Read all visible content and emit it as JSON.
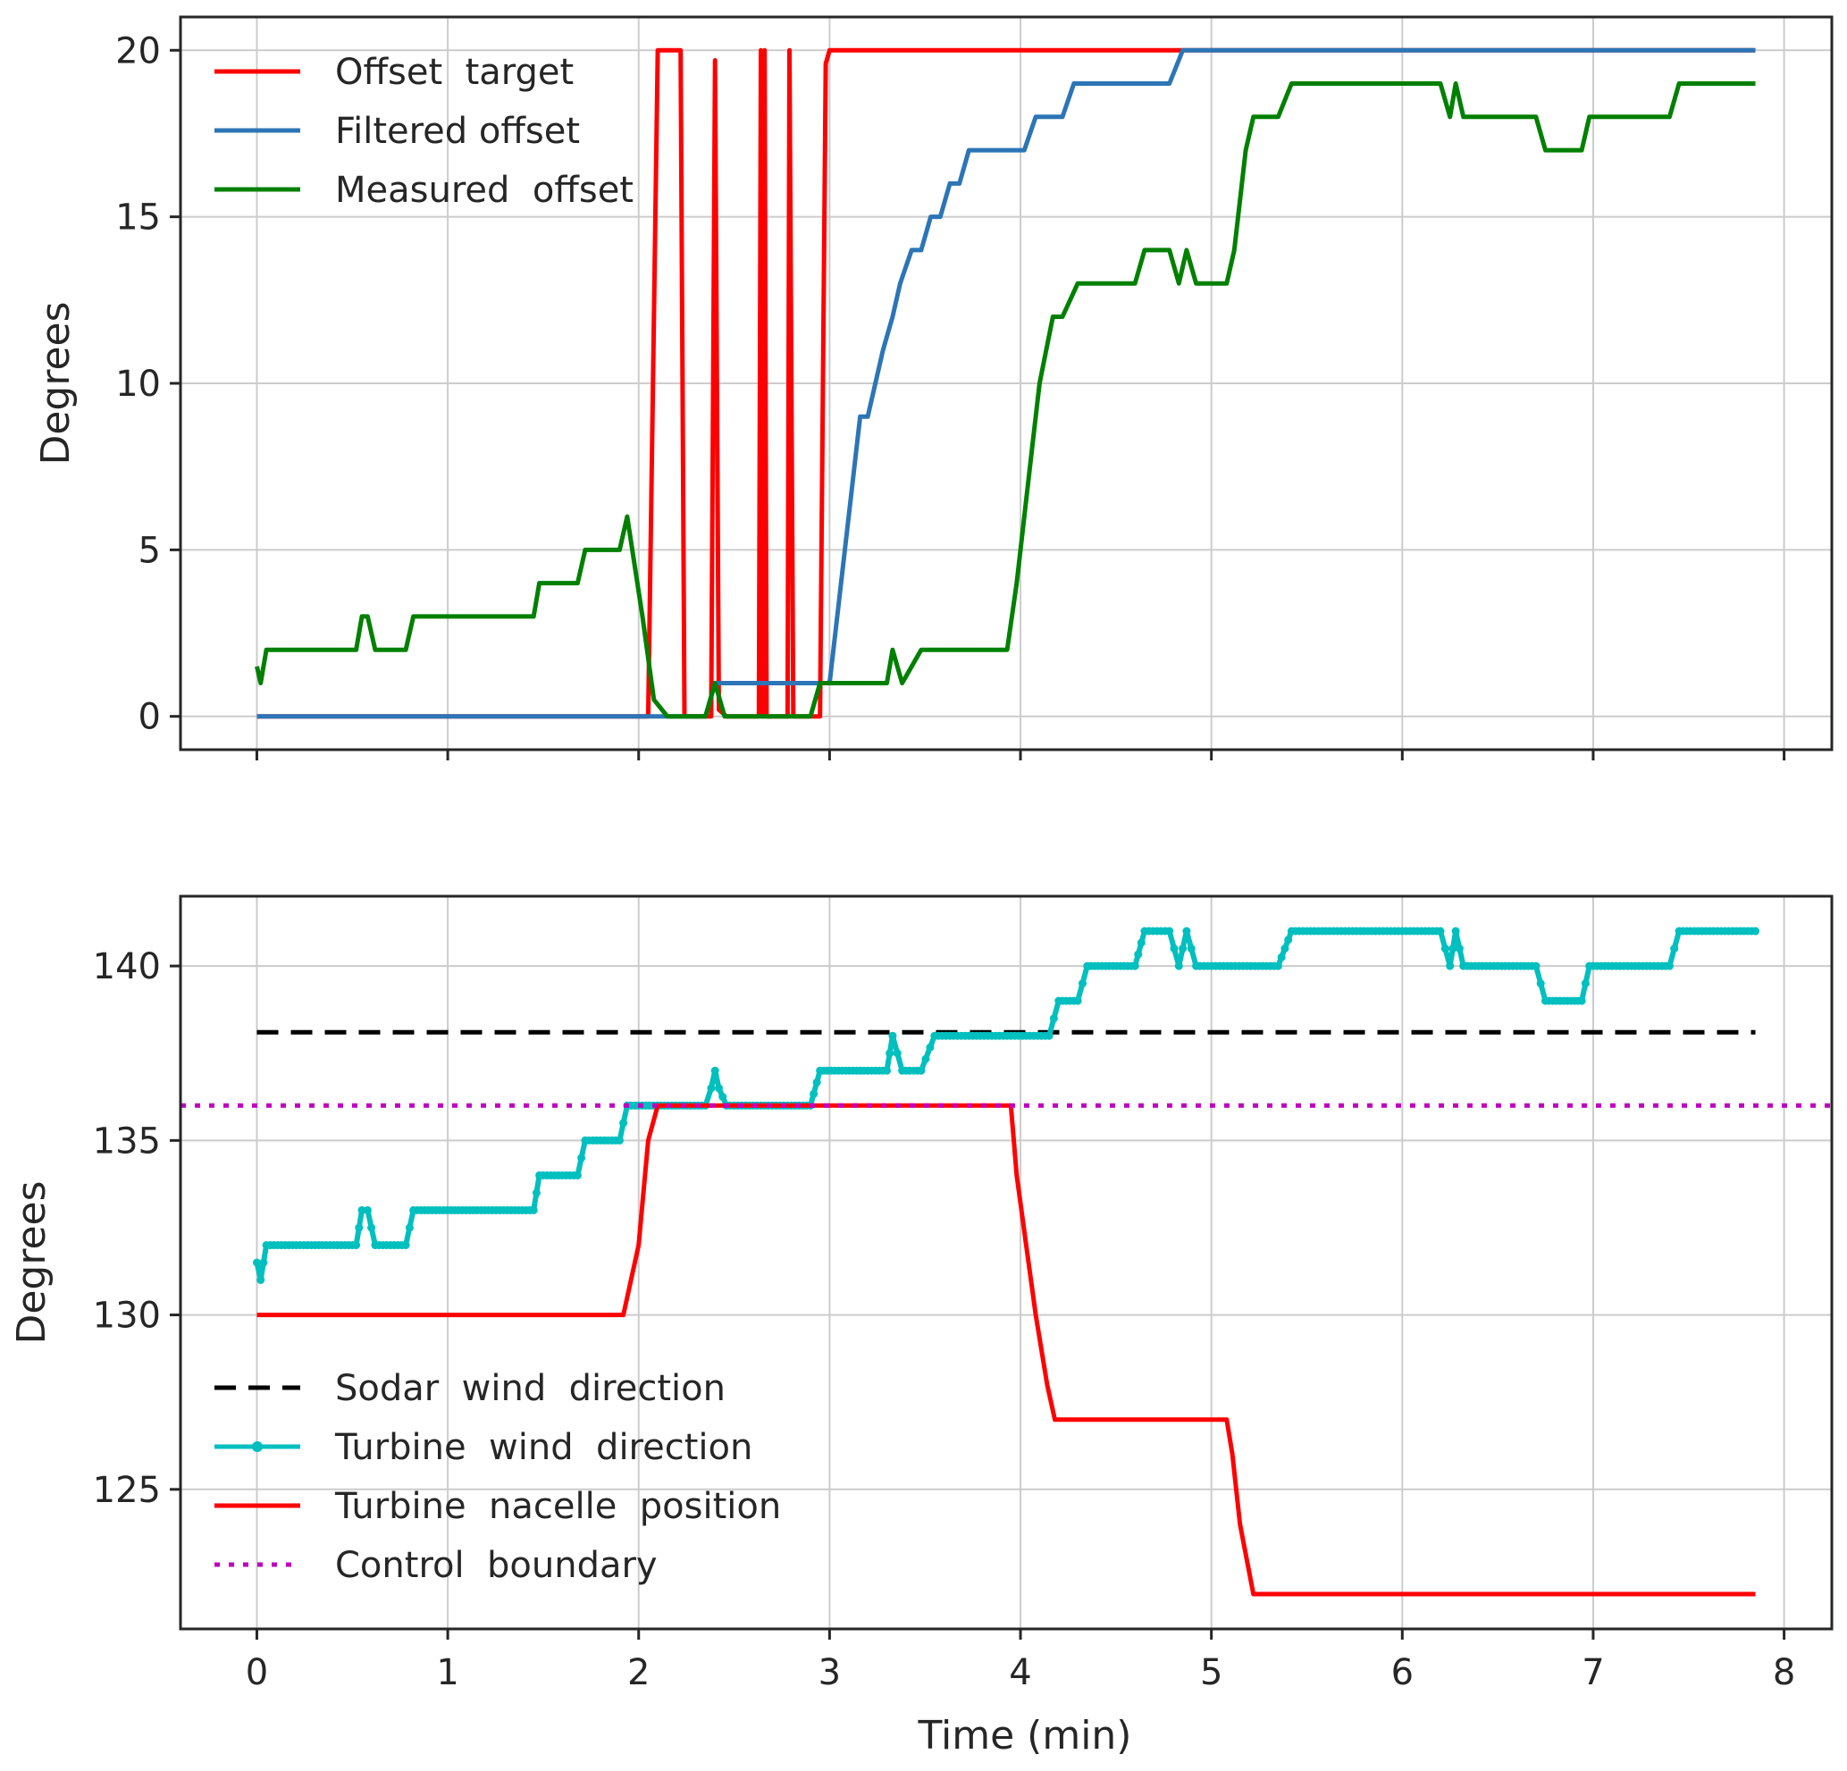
{
  "chart_data": [
    {
      "type": "line",
      "xlabel": "",
      "ylabel": "Degrees",
      "xlim": [
        -0.4,
        8.25
      ],
      "ylim": [
        -1,
        21
      ],
      "xticks": [
        0,
        1,
        2,
        3,
        4,
        5,
        6,
        7,
        8
      ],
      "yticks": [
        0,
        5,
        10,
        15,
        20
      ],
      "legend_position": "top-left",
      "series": [
        {
          "name": "Offset  target",
          "color": "#ff0000",
          "style": "solid",
          "x": [
            0,
            2.05,
            2.1,
            2.12,
            2.22,
            2.24,
            2.38,
            2.4,
            2.42,
            2.46,
            2.5,
            2.63,
            2.64,
            2.65,
            2.66,
            2.67,
            2.69,
            2.78,
            2.79,
            2.81,
            2.83,
            2.95,
            2.98,
            3.0,
            4.5,
            4.85,
            7.85
          ],
          "y": [
            0,
            0,
            20,
            20,
            20,
            0,
            0,
            19.7,
            0.2,
            0,
            0,
            0,
            20,
            0,
            20,
            0,
            0,
            0,
            20,
            0,
            0,
            0,
            19.6,
            20,
            20,
            20,
            20
          ]
        },
        {
          "name": "Filtered offset",
          "color": "#2c75b6",
          "style": "solid",
          "x": [
            0,
            2.35,
            2.4,
            2.95,
            3.0,
            3.16,
            3.2,
            3.28,
            3.33,
            3.37,
            3.43,
            3.48,
            3.53,
            3.58,
            3.63,
            3.68,
            3.73,
            3.82,
            3.88,
            4.02,
            4.08,
            4.22,
            4.28,
            4.78,
            4.85,
            7.85
          ],
          "y": [
            0,
            0,
            1,
            1,
            1,
            9,
            9,
            11,
            12,
            13,
            14,
            14,
            15,
            15,
            16,
            16,
            17,
            17,
            17,
            17,
            18,
            18,
            19,
            19,
            20,
            20
          ]
        },
        {
          "name": "Measured  offset",
          "color": "#008000",
          "style": "solid",
          "x": [
            0,
            0.02,
            0.05,
            0.52,
            0.55,
            0.58,
            0.62,
            0.78,
            0.82,
            1.45,
            1.48,
            1.68,
            1.72,
            1.9,
            1.94,
            2.02,
            2.08,
            2.15,
            2.35,
            2.4,
            2.45,
            2.9,
            2.95,
            3.3,
            3.33,
            3.38,
            3.48,
            3.55,
            3.93,
            3.98,
            4.02,
            4.06,
            4.1,
            4.17,
            4.22,
            4.3,
            4.35,
            4.6,
            4.65,
            4.78,
            4.83,
            4.87,
            4.92,
            5.08,
            5.12,
            5.18,
            5.22,
            5.35,
            5.42,
            6.2,
            6.25,
            6.28,
            6.32,
            6.7,
            6.75,
            6.94,
            6.98,
            7.4,
            7.45,
            7.85
          ],
          "y": [
            1.5,
            1,
            2,
            2,
            3,
            3,
            2,
            2,
            3,
            3,
            4,
            4,
            5,
            5,
            6,
            3,
            0.5,
            0,
            0,
            1,
            0,
            0,
            1,
            1,
            2,
            1,
            2,
            2,
            2,
            4,
            6,
            8,
            10,
            12,
            12,
            13,
            13,
            13,
            14,
            14,
            13,
            14,
            13,
            13,
            14,
            17,
            18,
            18,
            19,
            19,
            18,
            19,
            18,
            18,
            17,
            17,
            18,
            18,
            19,
            19
          ]
        }
      ]
    },
    {
      "type": "line",
      "xlabel": "Time (min)",
      "ylabel": "Degrees",
      "xlim": [
        -0.4,
        8.25
      ],
      "ylim": [
        121.0,
        142.0
      ],
      "xticks": [
        0,
        1,
        2,
        3,
        4,
        5,
        6,
        7,
        8
      ],
      "yticks": [
        125,
        130,
        135,
        140
      ],
      "legend_position": "bottom-left",
      "series": [
        {
          "name": "Sodar  wind  direction",
          "color": "#000000",
          "style": "dashed",
          "x": [
            0,
            7.85
          ],
          "y": [
            138.1,
            138.1
          ]
        },
        {
          "name": "Turbine  wind  direction",
          "color": "#00bfbf",
          "style": "solid-markers",
          "x": [
            0,
            0.02,
            0.05,
            0.52,
            0.55,
            0.58,
            0.62,
            0.78,
            0.82,
            1.45,
            1.48,
            1.68,
            1.72,
            1.9,
            1.94,
            2.35,
            2.38,
            2.4,
            2.42,
            2.46,
            2.9,
            2.95,
            3.2,
            3.3,
            3.33,
            3.38,
            3.48,
            3.55,
            4.15,
            4.2,
            4.3,
            4.35,
            4.6,
            4.65,
            4.78,
            4.83,
            4.87,
            4.92,
            5.35,
            5.42,
            6.2,
            6.25,
            6.28,
            6.32,
            6.7,
            6.75,
            6.94,
            6.98,
            7.4,
            7.45,
            7.85
          ],
          "y": [
            131.5,
            131,
            132,
            132,
            133,
            133,
            132,
            132,
            133,
            133,
            134,
            134,
            135,
            135,
            136,
            136,
            136.5,
            137,
            136.5,
            136,
            136,
            137,
            137,
            137,
            138,
            137,
            137,
            138,
            138,
            139,
            139,
            140,
            140,
            141,
            141,
            140,
            141,
            140,
            140,
            141,
            141,
            140,
            141,
            140,
            140,
            139,
            139,
            140,
            140,
            141,
            141
          ]
        },
        {
          "name": "Turbine  nacelle  position",
          "color": "#ff0000",
          "style": "solid",
          "x": [
            0,
            1.92,
            2.0,
            2.05,
            2.1,
            3.95,
            3.98,
            4.03,
            4.08,
            4.14,
            4.18,
            5.08,
            5.11,
            5.15,
            5.22,
            7.85
          ],
          "y": [
            130,
            130,
            132,
            135,
            136,
            136,
            134,
            132,
            130,
            128,
            127,
            127,
            126,
            124,
            122,
            122
          ]
        },
        {
          "name": "Control  boundary",
          "color": "#bf00bf",
          "style": "dotted",
          "x": [
            -0.4,
            8.25
          ],
          "y": [
            136,
            136
          ]
        }
      ]
    }
  ]
}
